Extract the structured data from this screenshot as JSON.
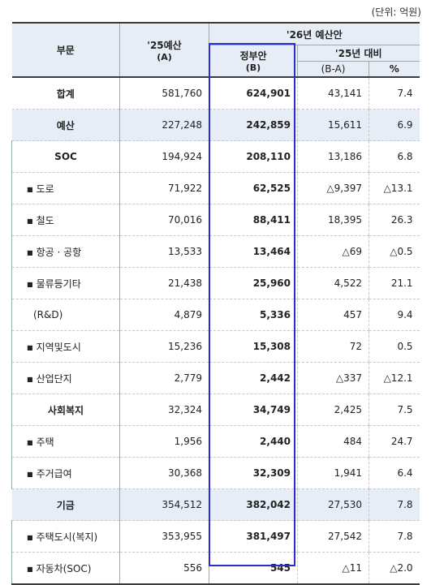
{
  "unit_note": "(단위: 억원)",
  "header": {
    "col_category": "부문",
    "col_2025": "'25예산",
    "col_2025_sub": "(A)",
    "group_2026": "'26년 예산안",
    "col_gov": "정부안",
    "col_gov_sub": "(B)",
    "group_vs": "'25년 대비",
    "col_diff": "(B-A)",
    "col_pct": "%"
  },
  "rows": [
    {
      "kind": "total",
      "label": "합계",
      "a": "581,760",
      "b": "624,901",
      "diff": "43,141",
      "pct": "7.4"
    },
    {
      "kind": "cat",
      "label": "예산",
      "a": "227,248",
      "b": "242,859",
      "diff": "15,611",
      "pct": "6.9"
    },
    {
      "kind": "sub",
      "label": "SOC",
      "a": "194,924",
      "b": "208,110",
      "diff": "13,186",
      "pct": "6.8"
    },
    {
      "kind": "item",
      "bullet": "■",
      "label": "도로",
      "a": "71,922",
      "b": "62,525",
      "diff": "△9,397",
      "pct": "△13.1"
    },
    {
      "kind": "item",
      "bullet": "■",
      "label": "철도",
      "a": "70,016",
      "b": "88,411",
      "diff": "18,395",
      "pct": "26.3"
    },
    {
      "kind": "item",
      "bullet": "■",
      "label": "항공 · 공항",
      "a": "13,533",
      "b": "13,464",
      "diff": "△69",
      "pct": "△0.5"
    },
    {
      "kind": "item",
      "bullet": "■",
      "label": "물류등기타",
      "a": "21,438",
      "b": "25,960",
      "diff": "4,522",
      "pct": "21.1"
    },
    {
      "kind": "item",
      "bullet": "",
      "label": "(R&D)",
      "a": "4,879",
      "b": "5,336",
      "diff": "457",
      "pct": "9.4"
    },
    {
      "kind": "item",
      "bullet": "■",
      "label": "지역및도시",
      "a": "15,236",
      "b": "15,308",
      "diff": "72",
      "pct": "0.5"
    },
    {
      "kind": "item",
      "bullet": "■",
      "label": "산업단지",
      "a": "2,779",
      "b": "2,442",
      "diff": "△337",
      "pct": "△12.1"
    },
    {
      "kind": "sub",
      "label": "사회복지",
      "a": "32,324",
      "b": "34,749",
      "diff": "2,425",
      "pct": "7.5"
    },
    {
      "kind": "item",
      "bullet": "■",
      "label": "주택",
      "a": "1,956",
      "b": "2,440",
      "diff": "484",
      "pct": "24.7"
    },
    {
      "kind": "item",
      "bullet": "■",
      "label": "주거급여",
      "a": "30,368",
      "b": "32,309",
      "diff": "1,941",
      "pct": "6.4"
    },
    {
      "kind": "cat",
      "label": "기금",
      "a": "354,512",
      "b": "382,042",
      "diff": "27,530",
      "pct": "7.8"
    },
    {
      "kind": "item",
      "bullet": "■",
      "label": "주택도시(복지)",
      "a": "353,955",
      "b": "381,497",
      "diff": "27,542",
      "pct": "7.8"
    },
    {
      "kind": "item",
      "bullet": "■",
      "label": "자동차(SOC)",
      "a": "556",
      "b": "545",
      "diff": "△11",
      "pct": "△2.0"
    }
  ],
  "colors": {
    "header_bg": "#e7edf6",
    "highlight": "#2a2ed0"
  }
}
